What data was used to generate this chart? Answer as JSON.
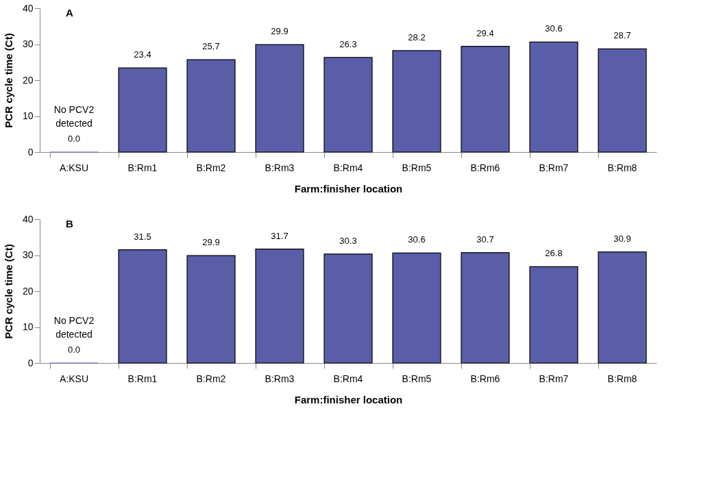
{
  "chart_data": [
    {
      "type": "bar",
      "title": "A",
      "xlabel": "Farm:finisher location",
      "ylabel": "PCR cycle time (Ct)",
      "categories": [
        "A:KSU",
        "B:Rm1",
        "B:Rm2",
        "B:Rm3",
        "B:Rm4",
        "B:Rm5",
        "B:Rm6",
        "B:Rm7",
        "B:Rm8"
      ],
      "values": [
        0.0,
        23.4,
        25.7,
        29.9,
        26.3,
        28.2,
        29.4,
        30.6,
        28.7
      ],
      "value_labels": [
        "0.0",
        "23.4",
        "25.7",
        "29.9",
        "26.3",
        "28.2",
        "29.4",
        "30.6",
        "28.7"
      ],
      "annotations": [
        {
          "text": "No PCV2\ndetected",
          "x": "A:KSU",
          "y": 0
        }
      ],
      "color": "#5a5ea9",
      "ylim": [
        0,
        40
      ],
      "yticks": [
        0,
        10,
        20,
        30,
        40
      ],
      "grid": false
    },
    {
      "type": "bar",
      "title": "B",
      "xlabel": "Farm:finisher location",
      "ylabel": "PCR cycle time (Ct)",
      "categories": [
        "A:KSU",
        "B:Rm1",
        "B:Rm2",
        "B:Rm3",
        "B:Rm4",
        "B:Rm5",
        "B:Rm6",
        "B:Rm7",
        "B:Rm8"
      ],
      "values": [
        0.0,
        31.5,
        29.9,
        31.7,
        30.3,
        30.6,
        30.7,
        26.8,
        30.9
      ],
      "value_labels": [
        "0.0",
        "31.5",
        "29.9",
        "31.7",
        "30.3",
        "30.6",
        "30.7",
        "26.8",
        "30.9"
      ],
      "annotations": [
        {
          "text": "No PCV2\ndetected",
          "x": "A:KSU",
          "y": 0
        }
      ],
      "color": "#5a5ea9",
      "ylim": [
        0,
        40
      ],
      "yticks": [
        0,
        10,
        20,
        30,
        40
      ],
      "grid": false
    }
  ]
}
